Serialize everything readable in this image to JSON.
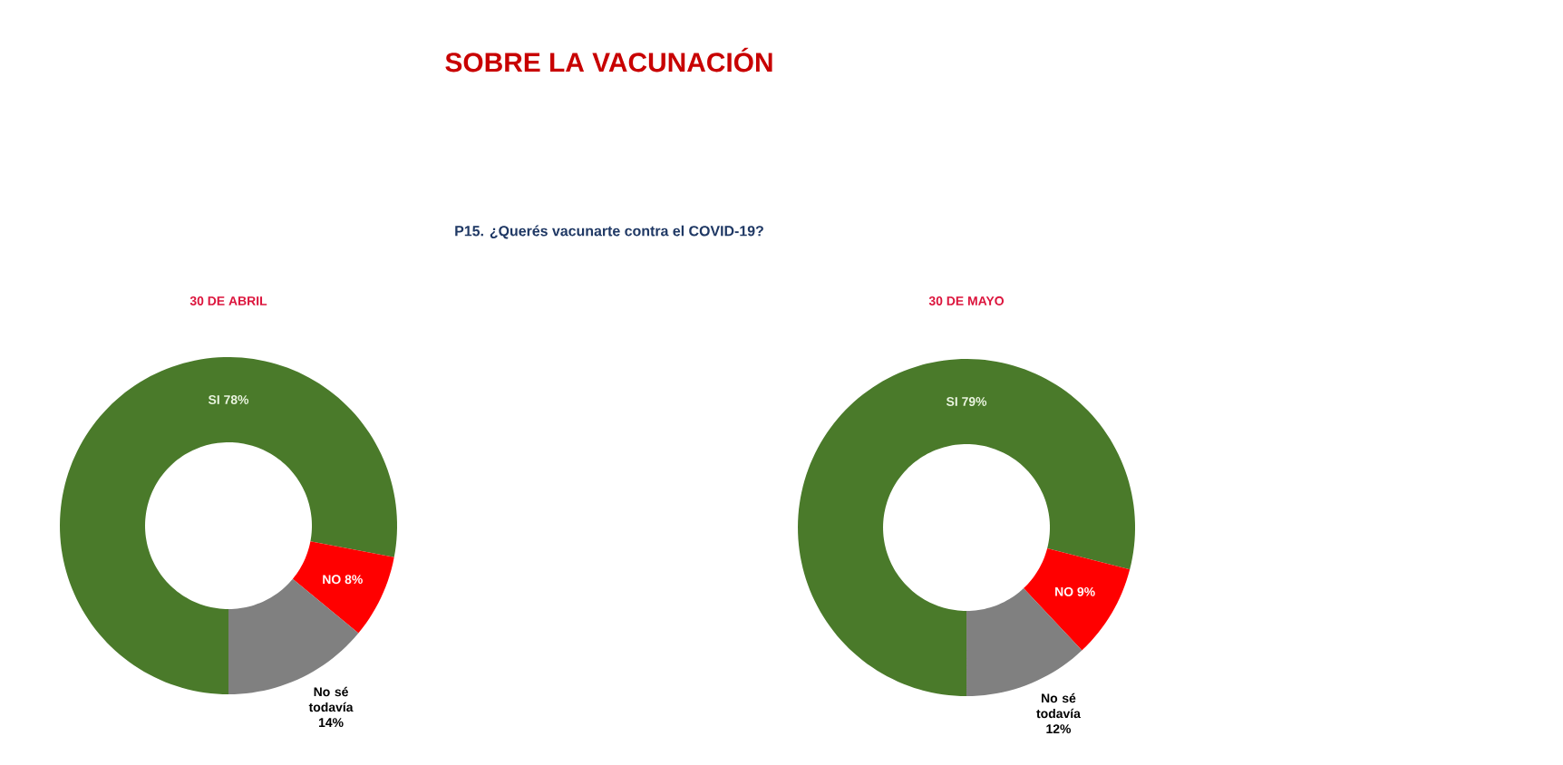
{
  "chart_data": [
    {
      "type": "donut",
      "title": "30 DE ABRIL",
      "annotations": [
        "SOBRE LA VACUNACIÓN",
        "P15. ¿Querés vacunarte contra el COVID-19?"
      ],
      "categories": [
        "SI",
        "NO",
        "No sé todavía"
      ],
      "values": [
        78,
        8,
        14
      ],
      "value_labels": [
        "78%",
        "8%",
        "14%"
      ],
      "colors": [
        "#4a7a2a",
        "#ff0000",
        "#808080"
      ]
    },
    {
      "type": "donut",
      "title": "30 DE MAYO",
      "categories": [
        "SI",
        "NO",
        "No sé todavía"
      ],
      "values": [
        79,
        9,
        12
      ],
      "value_labels": [
        "79%",
        "9%",
        "12%"
      ],
      "colors": [
        "#4a7a2a",
        "#ff0000",
        "#808080"
      ]
    }
  ]
}
